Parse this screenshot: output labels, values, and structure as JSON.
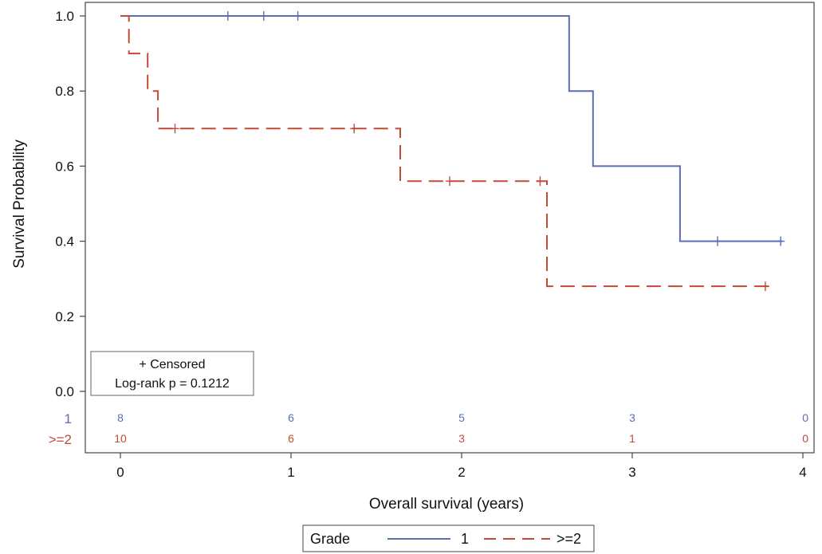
{
  "chart_data": {
    "type": "line",
    "subtype": "kaplan-meier step",
    "xlabel": "Overall survival (years)",
    "ylabel": "Survival Probability",
    "xlim": [
      0,
      4
    ],
    "ylim": [
      0,
      1
    ],
    "xticks": [
      "0",
      "1",
      "2",
      "3",
      "4"
    ],
    "yticks": [
      "0.0",
      "0.2",
      "0.4",
      "0.6",
      "0.8",
      "1.0"
    ],
    "grid": false,
    "annotation_box": {
      "line1": "+ Censored",
      "line2": "Log-rank p = 0.1212"
    },
    "series": [
      {
        "name": "1",
        "color": "#5c6db4",
        "dash": "solid",
        "x": [
          0.05,
          2.63,
          2.63,
          2.77,
          2.77,
          3.28,
          3.28,
          3.88
        ],
        "y": [
          1.0,
          1.0,
          0.8,
          0.8,
          0.6,
          0.6,
          0.4,
          0.4
        ],
        "censored": [
          [
            0.63,
            1.0
          ],
          [
            0.84,
            1.0
          ],
          [
            1.04,
            1.0
          ],
          [
            3.5,
            0.4
          ],
          [
            3.87,
            0.4
          ]
        ]
      },
      {
        "name": ">=2",
        "color": "#c24a38",
        "dash": "dashed",
        "x": [
          0.0,
          0.05,
          0.05,
          0.16,
          0.16,
          0.22,
          0.22,
          1.64,
          1.64,
          2.5,
          2.5,
          3.8
        ],
        "y": [
          1.0,
          1.0,
          0.9,
          0.9,
          0.8,
          0.8,
          0.7,
          0.7,
          0.56,
          0.56,
          0.28,
          0.28
        ],
        "censored": [
          [
            0.32,
            0.7
          ],
          [
            1.37,
            0.7
          ],
          [
            1.93,
            0.56
          ],
          [
            2.46,
            0.56
          ],
          [
            3.78,
            0.28
          ]
        ]
      }
    ],
    "risk_table": {
      "rows": [
        {
          "label": "1",
          "color": "#5c6db4",
          "at": [
            0,
            1,
            2,
            3,
            4
          ],
          "values": [
            "8",
            "6",
            "5",
            "3",
            "0"
          ]
        },
        {
          "label": ">=2",
          "color": "#c24a38",
          "at": [
            0,
            1,
            2,
            3,
            4
          ],
          "values": [
            "10",
            "6",
            "3",
            "1",
            "0"
          ]
        }
      ]
    },
    "legend": {
      "title": "Grade",
      "placement": "bottom",
      "entries": [
        {
          "label": "1",
          "color": "#5c6db4",
          "dash": "solid"
        },
        {
          "label": ">=2",
          "color": "#c24a38",
          "dash": "dashed"
        }
      ]
    }
  }
}
